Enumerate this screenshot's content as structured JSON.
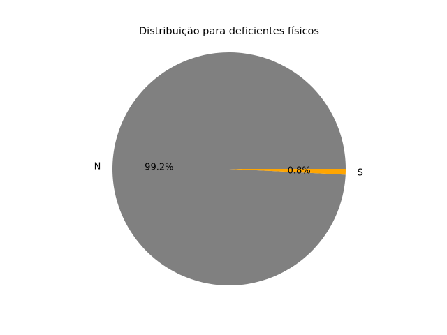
{
  "chart_data": {
    "type": "pie",
    "title": "Distribuição para deficientes físicos",
    "categories": [
      "N",
      "S"
    ],
    "values": [
      99.2,
      0.8
    ],
    "percent_labels": [
      "99.2%",
      "0.8%"
    ],
    "colors": [
      "#808080",
      "#ffa500"
    ],
    "start_angle_deg": 0,
    "direction": "counterclockwise",
    "legend": "none"
  }
}
